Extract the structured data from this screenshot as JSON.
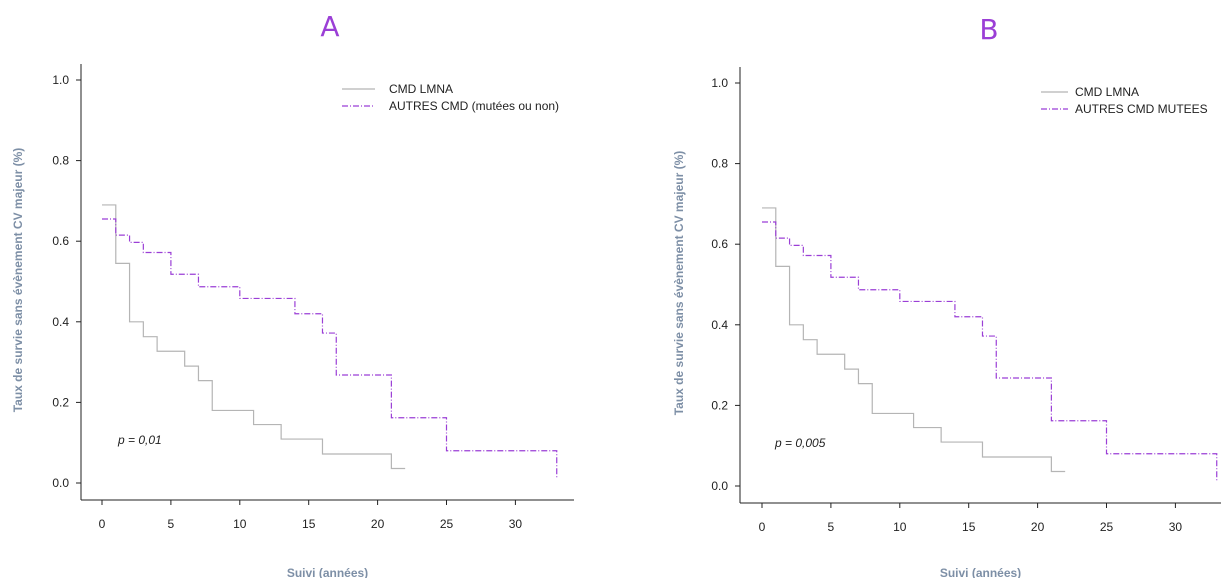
{
  "colors": {
    "title": "#9b3fd6",
    "series_lmna": "#b5b5b5",
    "series_other": "#9b3fd6",
    "axis": "#222222",
    "axis_title": "#7d8fa6"
  },
  "chart_data": [
    {
      "type": "line",
      "step": true,
      "title": "A",
      "xlabel": "Suivi (années)",
      "ylabel": "Taux de survie sans évènement CV majeur (%)",
      "xlim": [
        0,
        33
      ],
      "ylim": [
        0,
        1.0
      ],
      "xticks": [
        0,
        5,
        10,
        15,
        20,
        25,
        30
      ],
      "yticks": [
        0.0,
        0.2,
        0.4,
        0.6,
        0.8,
        1.0
      ],
      "tick_labels_y": [
        "0.0",
        "0.2",
        "0.4",
        "0.6",
        "0.8",
        "1.0"
      ],
      "tick_labels_x": [
        "0",
        "5",
        "10",
        "15",
        "20",
        "25",
        "30"
      ],
      "annotation": "p = 0,01",
      "legend_position": "top-right",
      "series": [
        {
          "name": "CMD LMNA",
          "style": "solid",
          "x": [
            0,
            1,
            2,
            3,
            4,
            6,
            7,
            8,
            11,
            13,
            16,
            21,
            22
          ],
          "y": [
            0.69,
            0.545,
            0.4,
            0.363,
            0.327,
            0.29,
            0.254,
            0.18,
            0.145,
            0.109,
            0.072,
            0.036,
            0.036
          ]
        },
        {
          "name": "AUTRES CMD (mutées ou non)",
          "style": "dashdot",
          "x": [
            0,
            1,
            2,
            3,
            5,
            7,
            10,
            14,
            16,
            17,
            21,
            25,
            33,
            33
          ],
          "y": [
            0.655,
            0.615,
            0.597,
            0.572,
            0.518,
            0.487,
            0.458,
            0.42,
            0.372,
            0.268,
            0.162,
            0.08,
            0.08,
            0.01
          ]
        }
      ]
    },
    {
      "type": "line",
      "step": true,
      "title": "B",
      "xlabel": "Suivi (années)",
      "ylabel": "Taux de survie sans évènement CV majeur (%)",
      "xlim": [
        0,
        33
      ],
      "ylim": [
        0,
        1.0
      ],
      "xticks": [
        0,
        5,
        10,
        15,
        20,
        25,
        30
      ],
      "yticks": [
        0.0,
        0.2,
        0.4,
        0.6,
        0.8,
        1.0
      ],
      "tick_labels_y": [
        "0.0",
        "0.2",
        "0.4",
        "0.6",
        "0.8",
        "1.0"
      ],
      "tick_labels_x": [
        "0",
        "5",
        "10",
        "15",
        "20",
        "25",
        "30"
      ],
      "annotation": "p = 0,005",
      "legend_position": "top-right",
      "series": [
        {
          "name": "CMD LMNA",
          "style": "solid",
          "x": [
            0,
            1,
            2,
            3,
            4,
            6,
            7,
            8,
            11,
            13,
            16,
            21,
            22
          ],
          "y": [
            0.69,
            0.545,
            0.4,
            0.363,
            0.327,
            0.29,
            0.254,
            0.18,
            0.145,
            0.109,
            0.072,
            0.036,
            0.036
          ]
        },
        {
          "name": "AUTRES CMD MUTEES",
          "style": "dashdot",
          "x": [
            0,
            1,
            2,
            3,
            5,
            7,
            10,
            14,
            16,
            17,
            21,
            25,
            33,
            33
          ],
          "y": [
            0.655,
            0.615,
            0.597,
            0.572,
            0.518,
            0.487,
            0.458,
            0.42,
            0.372,
            0.268,
            0.162,
            0.08,
            0.08,
            0.01
          ]
        }
      ]
    }
  ]
}
